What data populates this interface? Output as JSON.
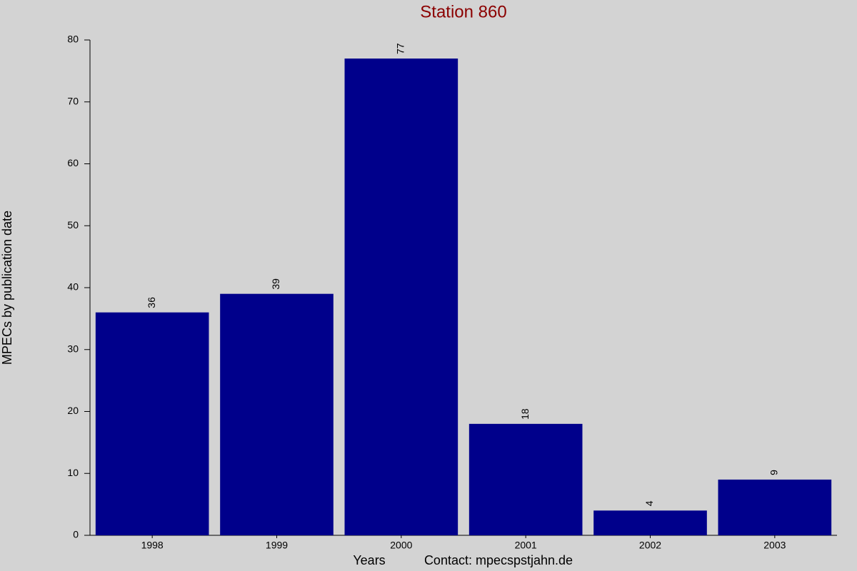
{
  "chart_data": {
    "type": "bar",
    "title": "Station 860",
    "y_label": "MPECs by publication date",
    "x_label": "Years",
    "note": "Contact: mpecspstjahn.de",
    "categories": [
      "1998",
      "1999",
      "2000",
      "2001",
      "2002",
      "2003"
    ],
    "values": [
      36,
      39,
      77,
      18,
      4,
      9
    ],
    "color": "#00008b",
    "ylim": [
      0,
      80
    ],
    "yticks": [
      0,
      10,
      20,
      30,
      40,
      50,
      60,
      70,
      80
    ],
    "grid": false,
    "title_color": "#8b0000",
    "y_label_color": "#00008b",
    "x_label_color": "#8b0000"
  }
}
